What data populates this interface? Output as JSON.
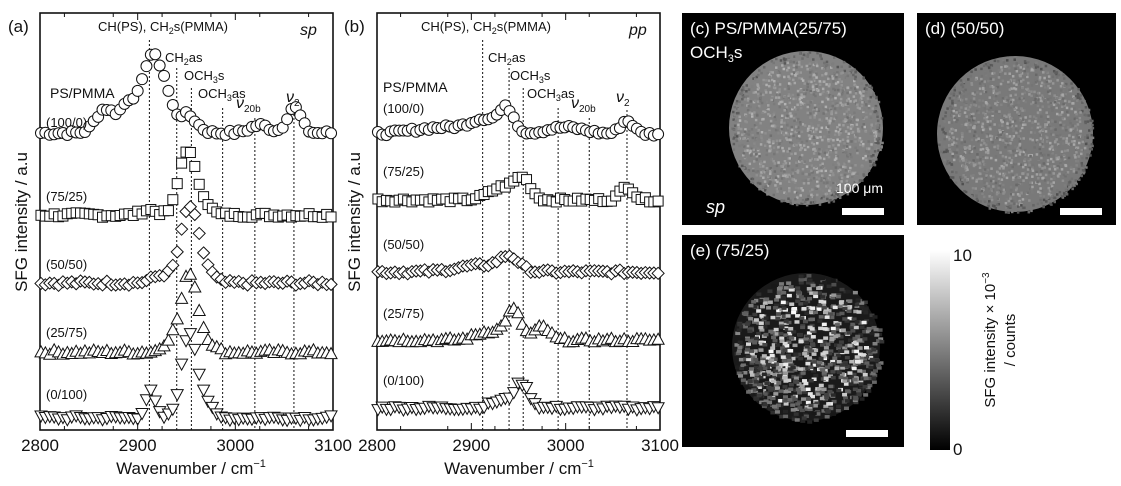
{
  "chart_data": [
    {
      "type": "scatter",
      "panel_label": "(a)",
      "polarization": "sp",
      "xlabel": "Wavenumber / cm⁻¹",
      "ylabel": "SFG intensity / a.u",
      "xlim": [
        2800,
        3100
      ],
      "xticks": [
        2800,
        2900,
        3000,
        3100
      ],
      "legend_title": "PS/PMMA",
      "reference_lines": [
        {
          "x": 2912,
          "label": "CH(PS), CH₂s(PMMA)"
        },
        {
          "x": 2940,
          "label": "CH₂as"
        },
        {
          "x": 2955,
          "label": "OCH₃s"
        },
        {
          "x": 2987,
          "label": "OCH₃as"
        },
        {
          "x": 3020,
          "label": "ν20b"
        },
        {
          "x": 3060,
          "label": "ν2"
        }
      ],
      "series": [
        {
          "name": "(100/0)",
          "marker": "circle",
          "baseline": 0.0,
          "peaks": [
            [
              2866,
              0.9,
              9
            ],
            [
              2893,
              1.3,
              10
            ],
            [
              2912,
              2.2,
              7
            ],
            [
              2925,
              2.0,
              8
            ],
            [
              2950,
              0.7,
              10
            ],
            [
              3025,
              0.3,
              10
            ],
            [
              3060,
              1.0,
              7
            ]
          ]
        },
        {
          "name": "(75/25)",
          "marker": "square",
          "baseline": 0.0,
          "peaks": [
            [
              2950,
              2.4,
              8
            ],
            [
              2965,
              0.6,
              8
            ],
            [
              2912,
              0.2,
              8
            ]
          ]
        },
        {
          "name": "(50/50)",
          "marker": "diamond",
          "baseline": 0.0,
          "peaks": [
            [
              2953,
              2.9,
              9
            ],
            [
              2970,
              0.4,
              8
            ],
            [
              2925,
              0.3,
              10
            ]
          ]
        },
        {
          "name": "(25/75)",
          "marker": "triangle-up",
          "baseline": 0.0,
          "peaks": [
            [
              2953,
              3.0,
              8
            ],
            [
              2935,
              0.5,
              8
            ],
            [
              2970,
              0.4,
              8
            ]
          ]
        },
        {
          "name": "(0/100)",
          "marker": "triangle-down",
          "baseline": 0.0,
          "peaks": [
            [
              2913,
              1.0,
              5
            ],
            [
              2953,
              3.3,
              8
            ],
            [
              2970,
              0.5,
              6
            ]
          ]
        }
      ]
    },
    {
      "type": "scatter",
      "panel_label": "(b)",
      "polarization": "pp",
      "xlabel": "Wavenumber / cm⁻¹",
      "ylabel": "SFG intensity / a.u",
      "xlim": [
        2800,
        3100
      ],
      "xticks": [
        2800,
        2900,
        3000,
        3100
      ],
      "legend_title": "PS/PMMA",
      "reference_lines": [
        {
          "x": 2912,
          "label": "CH(PS), CH₂s(PMMA)"
        },
        {
          "x": 2940,
          "label": "CH₂as"
        },
        {
          "x": 2955,
          "label": "OCH₃s"
        },
        {
          "x": 2992,
          "label": "OCH₃as"
        },
        {
          "x": 3025,
          "label": "ν20b"
        },
        {
          "x": 3065,
          "label": "ν2"
        }
      ],
      "series": [
        {
          "name": "(100/0)",
          "marker": "circle",
          "baseline": 0.0,
          "peaks": [
            [
              2870,
              0.3,
              30
            ],
            [
              2915,
              0.6,
              15
            ],
            [
              2938,
              1.0,
              8
            ],
            [
              3000,
              0.3,
              20
            ],
            [
              3065,
              0.6,
              7
            ]
          ]
        },
        {
          "name": "(75/25)",
          "marker": "square",
          "baseline": 0.0,
          "peaks": [
            [
              2935,
              0.6,
              15
            ],
            [
              2955,
              0.8,
              8
            ],
            [
              3065,
              0.6,
              7
            ]
          ]
        },
        {
          "name": "(50/50)",
          "marker": "diamond",
          "baseline": 0.0,
          "peaks": [
            [
              2910,
              0.3,
              25
            ],
            [
              2940,
              0.6,
              10
            ]
          ]
        },
        {
          "name": "(25/75)",
          "marker": "triangle-up",
          "baseline": 0.0,
          "peaks": [
            [
              2920,
              0.4,
              15
            ],
            [
              2945,
              1.3,
              8
            ],
            [
              2975,
              0.6,
              8
            ]
          ]
        },
        {
          "name": "(0/100)",
          "marker": "triangle-down",
          "baseline": 0.0,
          "peaks": [
            [
              2953,
              1.1,
              8
            ],
            [
              2930,
              0.3,
              10
            ]
          ]
        }
      ]
    }
  ],
  "images": [
    {
      "label": "(c) PS/PMMA(25/75)",
      "sublabel": "OCH₃s",
      "corner_label": "sp",
      "scalebar_label": "100 μm",
      "texture": "uniform",
      "brightness": 0.62
    },
    {
      "label": "(d) (50/50)",
      "texture": "uniform",
      "brightness": 0.58
    },
    {
      "label": "(e) (75/25)",
      "texture": "domains",
      "brightness": 0.5
    }
  ],
  "colorbar": {
    "max_label": "10",
    "min_label": "0",
    "label_line1": "SFG intensity × 10⁻³",
    "label_line2": "/ counts",
    "colormap": "grayscale"
  }
}
